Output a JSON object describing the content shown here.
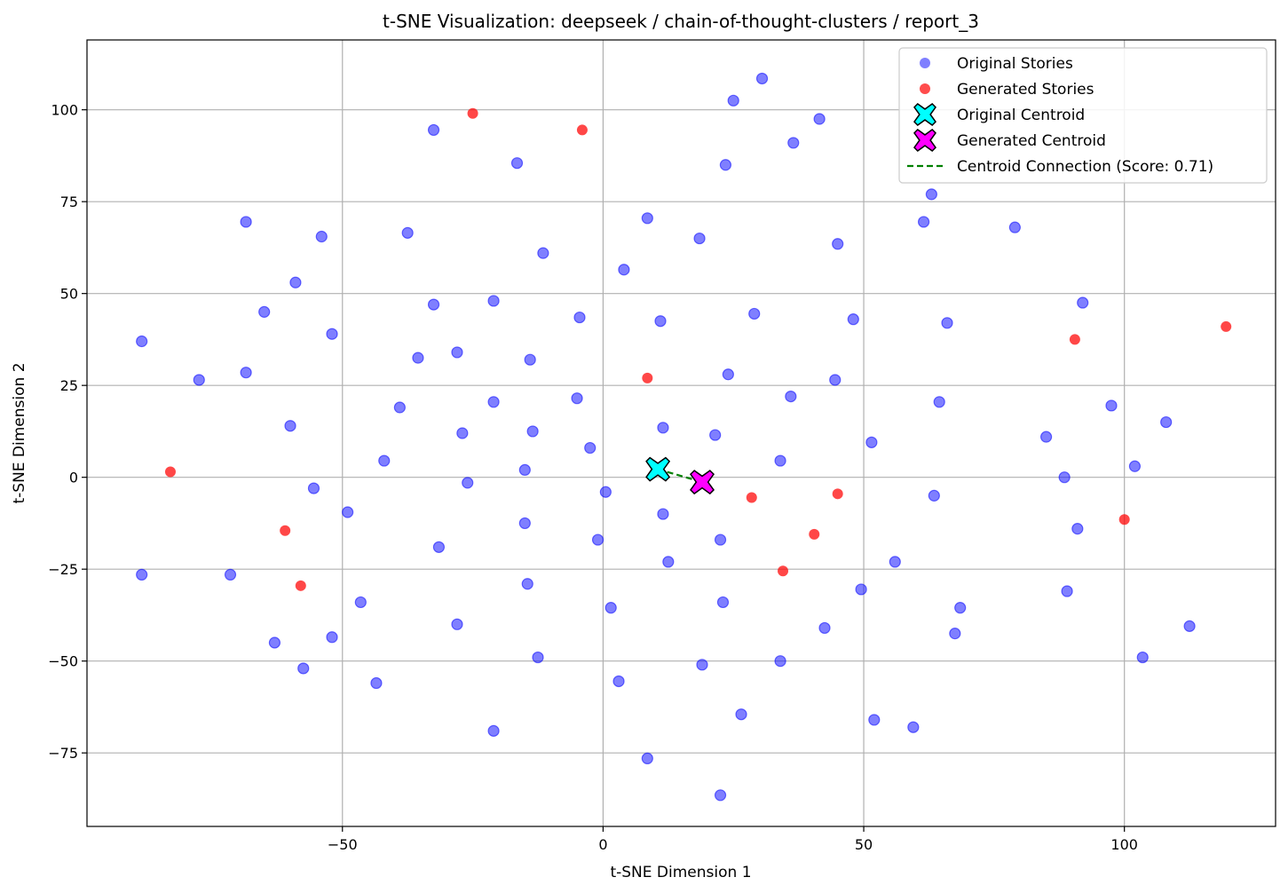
{
  "chart_data": {
    "type": "scatter",
    "title": "t-SNE Visualization: deepseek / chain-of-thought-clusters / report_3",
    "xlabel": "t-SNE Dimension 1",
    "ylabel": "t-SNE Dimension 2",
    "xlim": [
      -99,
      129
    ],
    "ylim": [
      -95,
      119
    ],
    "xticks": [
      -50,
      0,
      50,
      100
    ],
    "yticks": [
      -75,
      -50,
      -25,
      0,
      25,
      50,
      75,
      100
    ],
    "xtick_labels": [
      "−50",
      "0",
      "50",
      "100"
    ],
    "ytick_labels": [
      "−75",
      "−50",
      "−25",
      "0",
      "25",
      "50",
      "75",
      "100"
    ],
    "grid": true,
    "legend_position": "top-right",
    "series": [
      {
        "name": "Original Stories",
        "color": "#0000ff",
        "points": [
          [
            30.5,
            108.5
          ],
          [
            25,
            102.5
          ],
          [
            41.5,
            97.5
          ],
          [
            -32.5,
            94.5
          ],
          [
            36.5,
            91
          ],
          [
            -16.5,
            85.5
          ],
          [
            23.5,
            85
          ],
          [
            63,
            77
          ],
          [
            -68.5,
            69.5
          ],
          [
            8.5,
            70.5
          ],
          [
            61.5,
            69.5
          ],
          [
            79,
            68
          ],
          [
            -54,
            65.5
          ],
          [
            -37.5,
            66.5
          ],
          [
            18.5,
            65
          ],
          [
            45,
            63.5
          ],
          [
            -11.5,
            61
          ],
          [
            4,
            56.5
          ],
          [
            -59,
            53
          ],
          [
            -21,
            48
          ],
          [
            -32.5,
            47
          ],
          [
            92,
            47.5
          ],
          [
            -65,
            45
          ],
          [
            29,
            44.5
          ],
          [
            -4.5,
            43.5
          ],
          [
            11,
            42.5
          ],
          [
            48,
            43
          ],
          [
            66,
            42
          ],
          [
            -88.5,
            37
          ],
          [
            -52,
            39
          ],
          [
            -28,
            34
          ],
          [
            -35.5,
            32.5
          ],
          [
            -14,
            32
          ],
          [
            -68.5,
            28.5
          ],
          [
            -77.5,
            26.5
          ],
          [
            24,
            28
          ],
          [
            44.5,
            26.5
          ],
          [
            -39,
            19
          ],
          [
            -21,
            20.5
          ],
          [
            -5,
            21.5
          ],
          [
            36,
            22
          ],
          [
            64.5,
            20.5
          ],
          [
            97.5,
            19.5
          ],
          [
            108,
            15
          ],
          [
            -60,
            14
          ],
          [
            -27,
            12
          ],
          [
            -13.5,
            12.5
          ],
          [
            11.5,
            13.5
          ],
          [
            21.5,
            11.5
          ],
          [
            85,
            11
          ],
          [
            -2.5,
            8
          ],
          [
            51.5,
            9.5
          ],
          [
            -42,
            4.5
          ],
          [
            34,
            4.5
          ],
          [
            -15,
            2
          ],
          [
            102,
            3
          ],
          [
            -26,
            -1.5
          ],
          [
            88.5,
            0
          ],
          [
            -55.5,
            -3
          ],
          [
            0.5,
            -4
          ],
          [
            63.5,
            -5
          ],
          [
            -49,
            -9.5
          ],
          [
            11.5,
            -10
          ],
          [
            -15,
            -12.5
          ],
          [
            91,
            -14
          ],
          [
            -1,
            -17
          ],
          [
            22.5,
            -17
          ],
          [
            -31.5,
            -19
          ],
          [
            56,
            -23
          ],
          [
            12.5,
            -23
          ],
          [
            -14.5,
            -29
          ],
          [
            49.5,
            -30.5
          ],
          [
            89,
            -31
          ],
          [
            -46.5,
            -34
          ],
          [
            23,
            -34
          ],
          [
            1.5,
            -35.5
          ],
          [
            68.5,
            -35.5
          ],
          [
            -28,
            -40
          ],
          [
            42.5,
            -41
          ],
          [
            112.5,
            -40.5
          ],
          [
            67.5,
            -42.5
          ],
          [
            -63,
            -45
          ],
          [
            -52,
            -43.5
          ],
          [
            -12.5,
            -49
          ],
          [
            103.5,
            -49
          ],
          [
            34,
            -50
          ],
          [
            19,
            -51
          ],
          [
            -57.5,
            -52
          ],
          [
            -43.5,
            -56
          ],
          [
            3,
            -55.5
          ],
          [
            26.5,
            -64.5
          ],
          [
            52,
            -66
          ],
          [
            59.5,
            -68
          ],
          [
            -21,
            -69
          ],
          [
            8.5,
            -76.5
          ],
          [
            22.5,
            -86.5
          ],
          [
            -88.5,
            -26.5
          ],
          [
            -71.5,
            -26.5
          ]
        ]
      },
      {
        "name": "Generated Stories",
        "color": "#ff0000",
        "points": [
          [
            -25,
            99
          ],
          [
            -4,
            94.5
          ],
          [
            119.5,
            41
          ],
          [
            90.5,
            37.5
          ],
          [
            8.5,
            27
          ],
          [
            -83,
            1.5
          ],
          [
            28.5,
            -5.5
          ],
          [
            45,
            -4.5
          ],
          [
            -61,
            -14.5
          ],
          [
            40.5,
            -15.5
          ],
          [
            100,
            -11.5
          ],
          [
            -58,
            -29.5
          ],
          [
            34.5,
            -25.5
          ]
        ]
      }
    ],
    "centroids": [
      {
        "name": "Original Centroid",
        "color": "#00ffff",
        "x": 10.5,
        "y": 2.2
      },
      {
        "name": "Generated Centroid",
        "color": "#ff00ff",
        "x": 19,
        "y": -1.3
      }
    ],
    "connection": {
      "name": "Centroid Connection (Score: 0.71)",
      "color": "#008000"
    }
  }
}
